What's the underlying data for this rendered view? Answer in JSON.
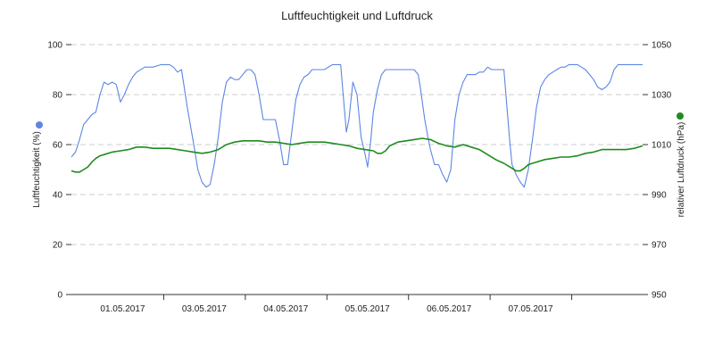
{
  "chart_data": {
    "type": "line",
    "title": "Luftfeuchtigkeit und Luftdruck",
    "y_left": {
      "label": "Luftfeuchtigkeit (%)",
      "range": [
        0,
        100
      ],
      "ticks": [
        0,
        20,
        40,
        60,
        80,
        100
      ]
    },
    "y_right": {
      "label": "relativer Luftdruck (hPa)",
      "range": [
        950,
        1050
      ],
      "ticks": [
        950,
        970,
        990,
        1010,
        1030,
        1050
      ]
    },
    "x_range": [
      0,
      7
    ],
    "x_ticks": [
      {
        "x": 1,
        "label": "01.05.2017"
      },
      {
        "x": 2,
        "label": "03.05.2017"
      },
      {
        "x": 3,
        "label": "04.05.2017"
      },
      {
        "x": 4,
        "label": "05.05.2017"
      },
      {
        "x": 5,
        "label": "06.05.2017"
      },
      {
        "x": 6,
        "label": "07.05.2017"
      }
    ],
    "x_tick_marks": [
      1,
      2,
      3,
      4,
      5,
      6
    ],
    "grid": true,
    "series": [
      {
        "axis": "left",
        "color": "#5b86e5",
        "values": [
          [
            0.0,
            55
          ],
          [
            0.05,
            57
          ],
          [
            0.1,
            62
          ],
          [
            0.15,
            68
          ],
          [
            0.2,
            70
          ],
          [
            0.25,
            72
          ],
          [
            0.3,
            73
          ],
          [
            0.35,
            80
          ],
          [
            0.4,
            85
          ],
          [
            0.45,
            84
          ],
          [
            0.5,
            85
          ],
          [
            0.55,
            84
          ],
          [
            0.6,
            77
          ],
          [
            0.65,
            80
          ],
          [
            0.7,
            84
          ],
          [
            0.75,
            87
          ],
          [
            0.8,
            89
          ],
          [
            0.9,
            91
          ],
          [
            1.0,
            91
          ],
          [
            1.1,
            92
          ],
          [
            1.2,
            92
          ],
          [
            1.25,
            91
          ],
          [
            1.3,
            89
          ],
          [
            1.35,
            90
          ],
          [
            1.42,
            75
          ],
          [
            1.5,
            60
          ],
          [
            1.55,
            50
          ],
          [
            1.6,
            45
          ],
          [
            1.65,
            43
          ],
          [
            1.7,
            44
          ],
          [
            1.75,
            52
          ],
          [
            1.8,
            63
          ],
          [
            1.85,
            77
          ],
          [
            1.9,
            85
          ],
          [
            1.95,
            87
          ],
          [
            2.0,
            86
          ],
          [
            2.05,
            86
          ],
          [
            2.1,
            88
          ],
          [
            2.15,
            90
          ],
          [
            2.2,
            90
          ],
          [
            2.25,
            88
          ],
          [
            2.3,
            80
          ],
          [
            2.35,
            70
          ],
          [
            2.4,
            70
          ],
          [
            2.45,
            70
          ],
          [
            2.5,
            70
          ],
          [
            2.55,
            62
          ],
          [
            2.6,
            52
          ],
          [
            2.65,
            52
          ],
          [
            2.7,
            65
          ],
          [
            2.75,
            78
          ],
          [
            2.8,
            84
          ],
          [
            2.85,
            87
          ],
          [
            2.9,
            88
          ],
          [
            2.95,
            90
          ],
          [
            3.0,
            90
          ],
          [
            3.05,
            90
          ],
          [
            3.1,
            90
          ],
          [
            3.15,
            91
          ],
          [
            3.2,
            92
          ],
          [
            3.25,
            92
          ],
          [
            3.3,
            92
          ],
          [
            3.33,
            80
          ],
          [
            3.37,
            65
          ],
          [
            3.4,
            70
          ],
          [
            3.45,
            85
          ],
          [
            3.5,
            80
          ],
          [
            3.55,
            63
          ],
          [
            3.6,
            56
          ],
          [
            3.63,
            51
          ],
          [
            3.67,
            62
          ],
          [
            3.7,
            73
          ],
          [
            3.75,
            82
          ],
          [
            3.8,
            88
          ],
          [
            3.85,
            90
          ],
          [
            3.9,
            90
          ],
          [
            3.95,
            90
          ],
          [
            4.0,
            90
          ],
          [
            4.05,
            90
          ],
          [
            4.1,
            90
          ],
          [
            4.15,
            90
          ],
          [
            4.2,
            90
          ],
          [
            4.25,
            88
          ],
          [
            4.28,
            82
          ],
          [
            4.33,
            70
          ],
          [
            4.37,
            63
          ],
          [
            4.4,
            58
          ],
          [
            4.45,
            52
          ],
          [
            4.5,
            52
          ],
          [
            4.55,
            48
          ],
          [
            4.6,
            45
          ],
          [
            4.65,
            50
          ],
          [
            4.7,
            70
          ],
          [
            4.75,
            80
          ],
          [
            4.8,
            85
          ],
          [
            4.85,
            88
          ],
          [
            4.9,
            88
          ],
          [
            4.95,
            88
          ],
          [
            5.0,
            89
          ],
          [
            5.05,
            89
          ],
          [
            5.1,
            91
          ],
          [
            5.15,
            90
          ],
          [
            5.2,
            90
          ],
          [
            5.25,
            90
          ],
          [
            5.3,
            90
          ],
          [
            5.33,
            78
          ],
          [
            5.37,
            62
          ],
          [
            5.4,
            52
          ],
          [
            5.45,
            48
          ],
          [
            5.5,
            45
          ],
          [
            5.55,
            43
          ],
          [
            5.6,
            50
          ],
          [
            5.65,
            62
          ],
          [
            5.7,
            75
          ],
          [
            5.75,
            83
          ],
          [
            5.8,
            86
          ],
          [
            5.85,
            88
          ],
          [
            5.9,
            89
          ],
          [
            5.95,
            90
          ],
          [
            6.0,
            91
          ],
          [
            6.05,
            91
          ],
          [
            6.1,
            92
          ],
          [
            6.15,
            92
          ],
          [
            6.2,
            92
          ],
          [
            6.25,
            91
          ],
          [
            6.3,
            90
          ],
          [
            6.35,
            88
          ],
          [
            6.4,
            86
          ],
          [
            6.45,
            83
          ],
          [
            6.5,
            82
          ],
          [
            6.55,
            83
          ],
          [
            6.6,
            85
          ],
          [
            6.65,
            90
          ],
          [
            6.7,
            92
          ],
          [
            6.75,
            92
          ],
          [
            6.8,
            92
          ],
          [
            6.85,
            92
          ],
          [
            6.9,
            92
          ],
          [
            6.95,
            92
          ],
          [
            7.0,
            92
          ]
        ]
      },
      {
        "axis": "right",
        "color": "#1e8c1e",
        "values": [
          [
            0.0,
            999.5
          ],
          [
            0.05,
            999.0
          ],
          [
            0.1,
            999.0
          ],
          [
            0.15,
            1000.0
          ],
          [
            0.2,
            1001.0
          ],
          [
            0.25,
            1003.0
          ],
          [
            0.3,
            1004.5
          ],
          [
            0.35,
            1005.5
          ],
          [
            0.4,
            1006.0
          ],
          [
            0.5,
            1007.0
          ],
          [
            0.6,
            1007.5
          ],
          [
            0.7,
            1008.0
          ],
          [
            0.8,
            1009.0
          ],
          [
            0.9,
            1009.0
          ],
          [
            1.0,
            1008.5
          ],
          [
            1.1,
            1008.5
          ],
          [
            1.2,
            1008.5
          ],
          [
            1.3,
            1008.0
          ],
          [
            1.4,
            1007.5
          ],
          [
            1.5,
            1007.0
          ],
          [
            1.6,
            1006.5
          ],
          [
            1.7,
            1007.0
          ],
          [
            1.8,
            1008.0
          ],
          [
            1.9,
            1010.0
          ],
          [
            2.0,
            1011.0
          ],
          [
            2.1,
            1011.5
          ],
          [
            2.2,
            1011.5
          ],
          [
            2.3,
            1011.5
          ],
          [
            2.4,
            1011.0
          ],
          [
            2.5,
            1011.0
          ],
          [
            2.6,
            1010.5
          ],
          [
            2.7,
            1010.0
          ],
          [
            2.8,
            1010.5
          ],
          [
            2.9,
            1011.0
          ],
          [
            3.0,
            1011.0
          ],
          [
            3.1,
            1011.0
          ],
          [
            3.2,
            1010.5
          ],
          [
            3.3,
            1010.0
          ],
          [
            3.4,
            1009.5
          ],
          [
            3.5,
            1008.5
          ],
          [
            3.6,
            1008.0
          ],
          [
            3.7,
            1007.5
          ],
          [
            3.75,
            1006.5
          ],
          [
            3.8,
            1006.5
          ],
          [
            3.85,
            1007.5
          ],
          [
            3.9,
            1009.5
          ],
          [
            4.0,
            1011.0
          ],
          [
            4.1,
            1011.5
          ],
          [
            4.2,
            1012.0
          ],
          [
            4.3,
            1012.5
          ],
          [
            4.4,
            1012.0
          ],
          [
            4.5,
            1010.5
          ],
          [
            4.6,
            1009.5
          ],
          [
            4.7,
            1009.0
          ],
          [
            4.8,
            1010.0
          ],
          [
            4.9,
            1009.0
          ],
          [
            5.0,
            1008.0
          ],
          [
            5.1,
            1006.0
          ],
          [
            5.2,
            1004.0
          ],
          [
            5.3,
            1002.5
          ],
          [
            5.4,
            1000.5
          ],
          [
            5.45,
            999.5
          ],
          [
            5.5,
            999.5
          ],
          [
            5.55,
            1000.5
          ],
          [
            5.6,
            1002.0
          ],
          [
            5.7,
            1003.0
          ],
          [
            5.8,
            1004.0
          ],
          [
            5.9,
            1004.5
          ],
          [
            6.0,
            1005.0
          ],
          [
            6.1,
            1005.0
          ],
          [
            6.2,
            1005.5
          ],
          [
            6.3,
            1006.5
          ],
          [
            6.4,
            1007.0
          ],
          [
            6.5,
            1008.0
          ],
          [
            6.6,
            1008.0
          ],
          [
            6.7,
            1008.0
          ],
          [
            6.8,
            1008.0
          ],
          [
            6.9,
            1008.5
          ],
          [
            7.0,
            1009.5
          ]
        ]
      }
    ]
  }
}
